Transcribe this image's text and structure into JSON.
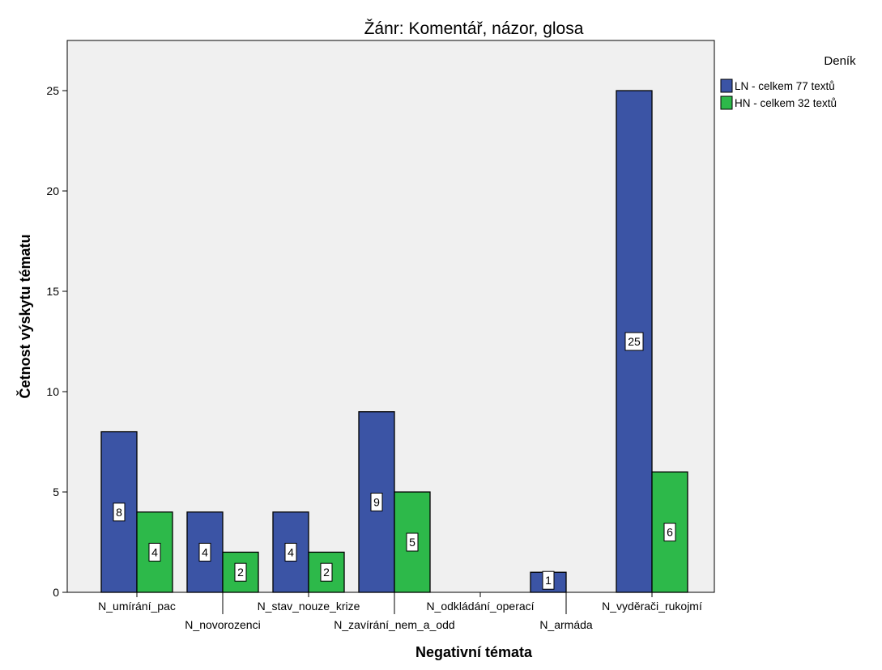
{
  "chart_data": {
    "type": "bar",
    "title": "Žánr: Komentář, názor, glosa",
    "xlabel": "Negativní témata",
    "ylabel": "Četnost výskytu tématu",
    "categories": [
      "N_umírání_pac",
      "N_novorozenci",
      "N_stav_nouze_krize",
      "N_zavírání_nem_a_odd",
      "N_odkládání_operací",
      "N_armáda",
      "N_vyděrači_rukojmí"
    ],
    "ylim": [
      0,
      27.5
    ],
    "yticks": [
      0,
      5,
      10,
      15,
      20,
      25
    ],
    "grid": false,
    "legend": {
      "title": "Deník",
      "position": "right"
    },
    "series": [
      {
        "name": "LN - celkem 77 textů",
        "color": "#3b54a5",
        "values": [
          8,
          4,
          4,
          9,
          0,
          1,
          25
        ],
        "labels": [
          "8",
          "4",
          "4",
          "9",
          "",
          "1",
          "25"
        ]
      },
      {
        "name": "HN - celkem 32 textů",
        "color": "#2db94a",
        "values": [
          4,
          2,
          2,
          5,
          0,
          0,
          6
        ],
        "labels": [
          "4",
          "2",
          "2",
          "5",
          "",
          "",
          "6"
        ]
      }
    ]
  }
}
